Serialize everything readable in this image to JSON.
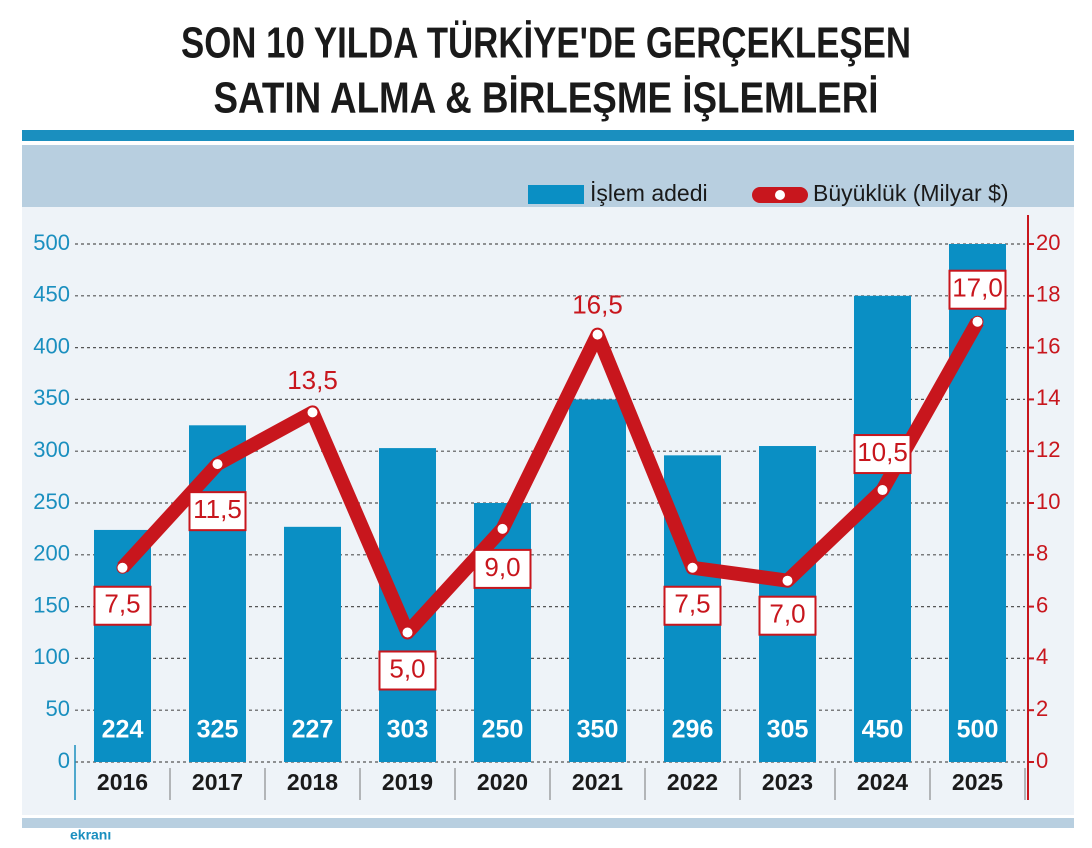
{
  "chart_data": {
    "type": "bar",
    "title": [
      "SON 10 YILDA TÜRKİYE'DE GERÇEKLEŞEN",
      "SATIN ALMA & BİRLEŞME İŞLEMLERİ"
    ],
    "categories": [
      "2016",
      "2017",
      "2018",
      "2019",
      "2020",
      "2021",
      "2022",
      "2023",
      "2024",
      "2025"
    ],
    "series": [
      {
        "name": "İşlem adedi",
        "type": "bar",
        "color": "#0a8fc4",
        "values": [
          224,
          325,
          227,
          303,
          250,
          350,
          296,
          305,
          450,
          500
        ]
      },
      {
        "name": "Büyüklük (Milyar $)",
        "type": "line",
        "axis": "y2",
        "color": "#c8161d",
        "values": [
          7.5,
          11.5,
          13.5,
          5.0,
          9.0,
          16.5,
          7.5,
          7.0,
          10.5,
          17.0
        ],
        "value_labels": [
          "7,5",
          "11,5",
          "13,5",
          "5,0",
          "9,0",
          "16,5",
          "7,5",
          "7,0",
          "10,5",
          "17,0"
        ]
      }
    ],
    "ylim": [
      0,
      500
    ],
    "yticks": [
      0,
      50,
      100,
      150,
      200,
      250,
      300,
      350,
      400,
      450,
      500
    ],
    "y2lim": [
      0,
      20
    ],
    "y2ticks": [
      0,
      2,
      4,
      6,
      8,
      10,
      12,
      14,
      16,
      18,
      20
    ],
    "grid": true,
    "legend": "top-right",
    "source": "ekranı"
  }
}
